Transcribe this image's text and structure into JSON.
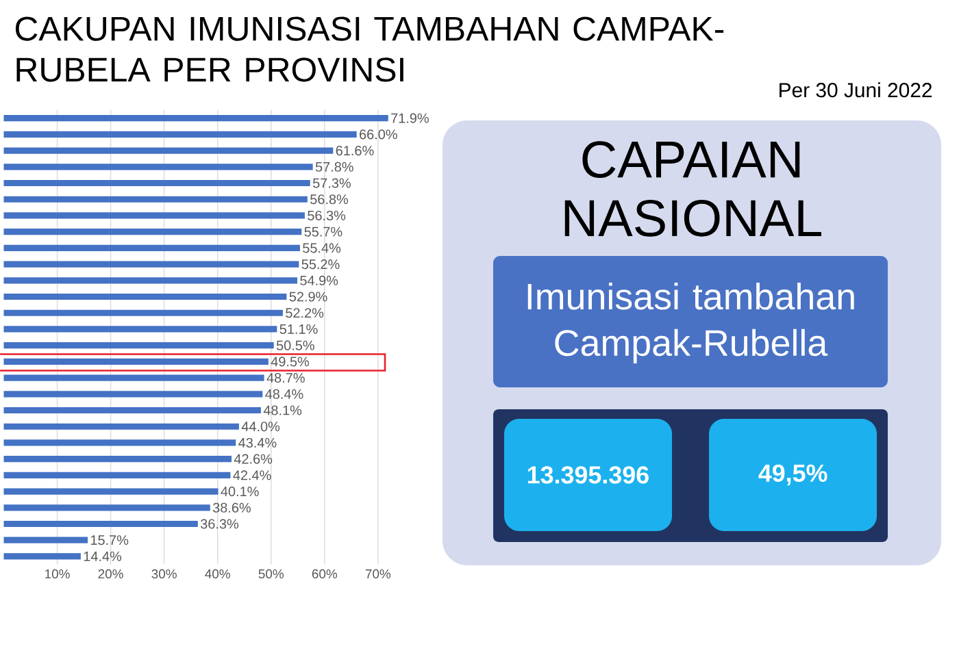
{
  "chart_data": [
    {
      "type": "bar",
      "orientation": "horizontal",
      "title": "CAKUPAN IMUNISASI TAMBAHAN CAMPAK-RUBELA PER PROVINSI",
      "annotations": [
        "Per 30 Juni 2022"
      ],
      "categories": [
        null,
        null,
        null,
        null,
        null,
        null,
        null,
        null,
        null,
        null,
        null,
        null,
        null,
        null,
        null,
        null,
        null,
        null,
        null,
        null,
        null,
        null,
        null,
        null,
        null,
        null,
        null,
        null
      ],
      "values": [
        71.9,
        66.0,
        61.6,
        57.8,
        57.3,
        56.8,
        56.3,
        55.7,
        55.4,
        55.2,
        54.9,
        52.9,
        52.2,
        51.1,
        50.5,
        49.5,
        48.7,
        48.4,
        48.1,
        44.0,
        43.4,
        42.6,
        42.4,
        40.1,
        38.6,
        36.3,
        15.7,
        14.4
      ],
      "value_labels": [
        "71.9%",
        "66.0%",
        "61.6%",
        "57.8%",
        "57.3%",
        "56.8%",
        "56.3%",
        "55.7%",
        "55.4%",
        "55.2%",
        "54.9%",
        "52.9%",
        "52.2%",
        "51.1%",
        "50.5%",
        "49.5%",
        "48.7%",
        "48.4%",
        "48.1%",
        "44.0%",
        "43.4%",
        "42.6%",
        "42.4%",
        "40.1%",
        "38.6%",
        "36.3%",
        "15.7%",
        "14.4%"
      ],
      "color": "#4472c4",
      "xlim": [
        0,
        72
      ],
      "xticks": [
        {
          "value": 10,
          "label": "10%"
        },
        {
          "value": 20,
          "label": "20%"
        },
        {
          "value": 30,
          "label": "30%"
        },
        {
          "value": 40,
          "label": "40%"
        },
        {
          "value": 50,
          "label": "50%"
        },
        {
          "value": 60,
          "label": "60%"
        },
        {
          "value": 70,
          "label": "70%"
        }
      ],
      "grid": "x"
    },
    {
      "type": "other",
      "title": "CAPAIAN NASIONAL",
      "subtitle": "Imunisasi tambahan Campak-Rubella",
      "annotations": [
        "13.395.396",
        "49,5%"
      ]
    }
  ]
}
